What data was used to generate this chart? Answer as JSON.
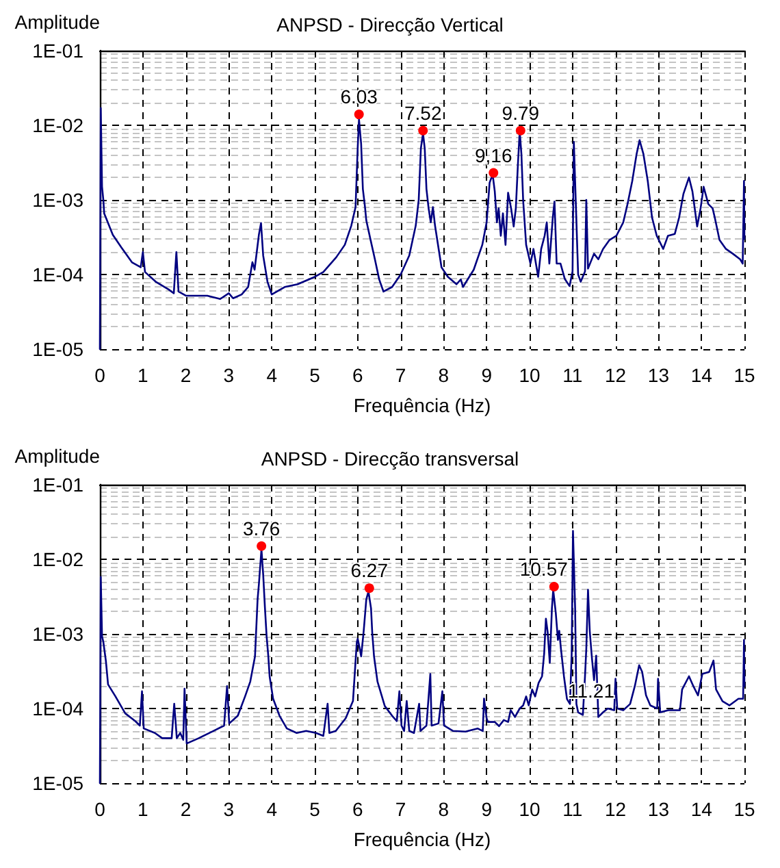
{
  "chart_data": [
    {
      "type": "line",
      "title": "ANPSD - Direcção Vertical",
      "xlabel": "Frequência (Hz)",
      "ylabel": "Amplitude",
      "xlim": [
        0,
        15
      ],
      "xticks": [
        0,
        1,
        2,
        3,
        4,
        5,
        6,
        7,
        8,
        9,
        10,
        11,
        12,
        13,
        14,
        15
      ],
      "ylim": [
        1e-05,
        0.1
      ],
      "yticks": [
        {
          "value": 1e-05,
          "label": "1E-05"
        },
        {
          "value": 0.0001,
          "label": "1E-04"
        },
        {
          "value": 0.001,
          "label": "1E-03"
        },
        {
          "value": 0.01,
          "label": "1E-02"
        },
        {
          "value": 0.1,
          "label": "1E-01"
        }
      ],
      "log": "y",
      "grid": true,
      "annotations": [
        {
          "text": "6.03",
          "x": 6.03,
          "y": 0.014
        },
        {
          "text": "7.52",
          "x": 7.52,
          "y": 0.0085
        },
        {
          "text": "9,16",
          "x": 9.16,
          "y": 0.0023
        },
        {
          "text": "9.79",
          "x": 9.79,
          "y": 0.0085
        }
      ],
      "series": [
        {
          "type": "line",
          "color": "#000080",
          "marker": "none",
          "x": [
            0,
            0.02,
            0.05,
            0.08,
            0.1,
            0.3,
            0.5,
            0.75,
            0.95,
            1.0,
            1.05,
            1.3,
            1.6,
            1.72,
            1.78,
            1.83,
            2.0,
            2.5,
            2.8,
            3.0,
            3.1,
            3.3,
            3.45,
            3.55,
            3.6,
            3.7,
            3.75,
            3.8,
            3.9,
            4.0,
            4.3,
            4.6,
            5.0,
            5.2,
            5.5,
            5.7,
            5.85,
            5.95,
            6.0,
            6.03,
            6.08,
            6.12,
            6.17,
            6.2,
            6.3,
            6.4,
            6.5,
            6.6,
            6.8,
            7.0,
            7.2,
            7.35,
            7.42,
            7.47,
            7.52,
            7.56,
            7.6,
            7.65,
            7.7,
            7.75,
            7.8,
            7.95,
            8.1,
            8.3,
            8.4,
            8.45,
            8.7,
            8.9,
            9.0,
            9.07,
            9.14,
            9.19,
            9.24,
            9.28,
            9.33,
            9.38,
            9.44,
            9.5,
            9.57,
            9.63,
            9.68,
            9.73,
            9.77,
            9.81,
            9.85,
            9.92,
            10.02,
            10.09,
            10.2,
            10.27,
            10.35,
            10.4,
            10.46,
            10.54,
            10.58,
            10.63,
            10.72,
            10.82,
            10.93,
            11.0,
            11.03,
            11.08,
            11.13,
            11.19,
            11.29,
            11.32,
            11.36,
            11.5,
            11.6,
            11.71,
            11.86,
            12.02,
            12.18,
            12.28,
            12.39,
            12.49,
            12.56,
            12.65,
            12.75,
            12.85,
            12.96,
            13.11,
            13.22,
            13.38,
            13.48,
            13.58,
            13.71,
            13.79,
            13.9,
            13.98,
            14.05,
            14.16,
            14.26,
            14.31,
            14.42,
            14.57,
            14.73,
            14.9,
            14.96,
            14.99,
            15.0
          ],
          "values": [
            1e-05,
            0.017,
            0.0015,
            0.001,
            0.00066,
            0.00034,
            0.00023,
            0.000145,
            0.000125,
            0.0002,
            0.000108,
            8e-05,
            6.3e-05,
            5.6e-05,
            0.0002,
            5.9e-05,
            5.2e-05,
            5.2e-05,
            4.7e-05,
            5.6e-05,
            4.8e-05,
            5.4e-05,
            6.8e-05,
            0.000146,
            0.000116,
            0.00034,
            0.00049,
            0.00018,
            8e-05,
            5.4e-05,
            6.8e-05,
            7.4e-05,
            9.3e-05,
            0.000108,
            0.00017,
            0.00025,
            0.00045,
            0.0008,
            0.005,
            0.012,
            0.0056,
            0.0014,
            0.0008,
            0.00053,
            0.00029,
            0.00016,
            8.6e-05,
            5.9e-05,
            6.8e-05,
            0.0001,
            0.00018,
            0.00045,
            0.001,
            0.0049,
            0.0078,
            0.0049,
            0.0014,
            0.00077,
            0.0005,
            0.0008,
            0.00045,
            0.000125,
            9.3e-05,
            7.4e-05,
            8.6e-05,
            6.8e-05,
            0.000116,
            0.00025,
            0.0005,
            0.0017,
            0.0022,
            0.0013,
            0.0005,
            0.00077,
            0.00033,
            0.00066,
            0.00025,
            0.00125,
            0.00077,
            0.00044,
            0.00077,
            0.0031,
            0.0083,
            0.0041,
            0.001,
            0.00025,
            0.00014,
            0.00022,
            9.3e-05,
            0.00022,
            0.00033,
            0.0005,
            0.00014,
            0.00058,
            0.00095,
            0.00014,
            0.00014,
            8.7e-05,
            7e-05,
            0.00011,
            0.006,
            0.00077,
            0.0001,
            8e-05,
            0.00011,
            0.001,
            0.00012,
            0.00019,
            0.00016,
            0.00022,
            0.00029,
            0.00033,
            0.0005,
            0.00088,
            0.0018,
            0.0041,
            0.0063,
            0.0041,
            0.0018,
            0.00058,
            0.00033,
            0.00022,
            0.00033,
            0.00035,
            0.00058,
            0.0012,
            0.002,
            0.0013,
            0.00044,
            0.00077,
            0.0015,
            0.00088,
            0.00077,
            0.00058,
            0.00029,
            0.00022,
            0.00019,
            0.00016,
            0.00014,
            0.0018,
            0.0003
          ]
        },
        {
          "type": "scatter",
          "color": "#ff0000",
          "marker": "circle",
          "x": [
            6.03,
            7.52,
            9.16,
            9.79
          ],
          "values": [
            0.014,
            0.0085,
            0.0023,
            0.0085
          ]
        }
      ]
    },
    {
      "type": "line",
      "title": "ANPSD - Direcção transversal",
      "xlabel": "Frequência (Hz)",
      "ylabel": "Amplitude",
      "xlim": [
        0,
        15
      ],
      "xticks": [
        0,
        1,
        2,
        3,
        4,
        5,
        6,
        7,
        8,
        9,
        10,
        11,
        12,
        13,
        14,
        15
      ],
      "ylim": [
        1e-05,
        0.1
      ],
      "yticks": [
        {
          "value": 1e-05,
          "label": "1E-05"
        },
        {
          "value": 0.0001,
          "label": "1E-04"
        },
        {
          "value": 0.001,
          "label": "1E-03"
        },
        {
          "value": 0.01,
          "label": "1E-02"
        },
        {
          "value": 0.1,
          "label": "1E-01"
        }
      ],
      "log": "y",
      "grid": true,
      "annotations": [
        {
          "text": "3.76",
          "x": 3.76,
          "y": 0.015
        },
        {
          "text": "6.27",
          "x": 6.27,
          "y": 0.0041
        },
        {
          "text": "10.57",
          "x": 10.57,
          "y": 0.0043
        },
        {
          "text": "11.21",
          "x": 11.21,
          "y": 0.0001
        }
      ],
      "series": [
        {
          "type": "line",
          "color": "#000080",
          "marker": "none",
          "x": [
            0,
            0.02,
            0.05,
            0.08,
            0.14,
            0.19,
            0.36,
            0.59,
            0.82,
            0.93,
            0.98,
            1.02,
            1.28,
            1.45,
            1.67,
            1.73,
            1.79,
            1.87,
            1.94,
            1.97,
            2.02,
            2.3,
            2.64,
            2.89,
            2.96,
            3.01,
            3.21,
            3.38,
            3.5,
            3.61,
            3.67,
            3.7,
            3.76,
            3.8,
            3.84,
            3.88,
            3.92,
            3.95,
            4.03,
            4.18,
            4.35,
            4.58,
            4.8,
            5.03,
            5.2,
            5.3,
            5.34,
            5.49,
            5.72,
            5.89,
            5.95,
            5.98,
            6.0,
            6.04,
            6.08,
            6.14,
            6.2,
            6.25,
            6.31,
            6.34,
            6.38,
            6.46,
            6.63,
            6.8,
            6.91,
            6.97,
            7.02,
            7.08,
            7.14,
            7.2,
            7.31,
            7.43,
            7.46,
            7.6,
            7.69,
            7.72,
            7.88,
            7.97,
            8.01,
            8.22,
            8.51,
            8.79,
            8.91,
            8.94,
            9.0,
            9.03,
            9.19,
            9.29,
            9.4,
            9.5,
            9.56,
            9.66,
            9.77,
            9.85,
            9.92,
            9.98,
            10.06,
            10.13,
            10.21,
            10.29,
            10.34,
            10.38,
            10.42,
            10.47,
            10.52,
            10.55,
            10.61,
            10.66,
            10.69,
            10.73,
            10.8,
            10.87,
            10.94,
            10.98,
            11.01,
            11.06,
            11.09,
            11.13,
            11.24,
            11.29,
            11.32,
            11.36,
            11.4,
            11.45,
            11.5,
            11.55,
            11.6,
            11.71,
            11.82,
            11.97,
            12.0,
            12.04,
            12.18,
            12.34,
            12.45,
            12.55,
            12.62,
            12.71,
            12.81,
            12.97,
            12.99,
            13.04,
            13.23,
            13.5,
            13.55,
            13.71,
            13.81,
            13.92,
            14.02,
            14.18,
            14.28,
            14.34,
            14.49,
            14.65,
            14.86,
            14.97,
            14.99,
            15.0
          ],
          "values": [
            1e-05,
            0.0058,
            0.00093,
            0.00078,
            0.00043,
            0.00021,
            0.000146,
            8.6e-05,
            6.8e-05,
            5.9e-05,
            0.00017,
            5.4e-05,
            4.7e-05,
            4e-05,
            4e-05,
            0.000116,
            4e-05,
            4.7e-05,
            3.8e-05,
            0.000184,
            3.4e-05,
            4e-05,
            5e-05,
            5.9e-05,
            0.0002,
            6.3e-05,
            8e-05,
            0.000146,
            0.00023,
            0.0005,
            0.0029,
            0.0046,
            0.0136,
            0.0063,
            0.0023,
            0.00093,
            0.0005,
            0.00027,
            0.000136,
            8e-05,
            5.4e-05,
            4.7e-05,
            5e-05,
            4.7e-05,
            4.3e-05,
            0.000116,
            4.7e-05,
            5e-05,
            7.4e-05,
            0.000126,
            0.00043,
            0.00078,
            0.00086,
            0.00067,
            0.0005,
            0.0011,
            0.0029,
            0.0037,
            0.0022,
            0.001,
            0.0005,
            0.00023,
            0.000108,
            8e-05,
            6.8e-05,
            0.00017,
            5.9e-05,
            5e-05,
            0.000126,
            5e-05,
            4.7e-05,
            0.000116,
            5e-05,
            5.9e-05,
            0.00029,
            5.9e-05,
            6.3e-05,
            0.00017,
            5.9e-05,
            5e-05,
            4.9e-05,
            5.4e-05,
            5e-05,
            0.000136,
            7.4e-05,
            6.6e-05,
            6.6e-05,
            5.8e-05,
            7e-05,
            6.6e-05,
            9.5e-05,
            7.7e-05,
            0.0001,
            0.00011,
            0.000145,
            0.00011,
            0.00018,
            0.000145,
            0.00022,
            0.00027,
            0.00055,
            0.0016,
            0.00107,
            0.00041,
            0.0022,
            0.0039,
            0.0019,
            0.00083,
            0.0011,
            0.00063,
            0.00027,
            0.000134,
            0.000115,
            0.00055,
            0.024,
            0.0022,
            0.000115,
            8.9e-05,
            8.2e-05,
            0.00027,
            0.00063,
            0.0039,
            0.0011,
            0.00048,
            0.00024,
            0.00051,
            7.7e-05,
            8.9e-05,
            0.0001,
            9.5e-05,
            0.00025,
            0.0001,
            9.5e-05,
            0.000115,
            0.0002,
            0.00038,
            0.00031,
            0.00015,
            0.00011,
            0.0001,
            0.00025,
            8.9e-05,
            9.5e-05,
            9.5e-05,
            0.00018,
            0.00027,
            0.0002,
            0.00015,
            0.00029,
            0.00031,
            0.00044,
            0.00018,
            0.000125,
            0.00011,
            0.000135,
            0.000135,
            0.00083,
            0.0002
          ]
        },
        {
          "type": "scatter",
          "color": "#ff0000",
          "marker": "circle",
          "x": [
            3.76,
            6.27,
            10.57
          ],
          "values": [
            0.015,
            0.0041,
            0.0043
          ]
        }
      ]
    }
  ]
}
